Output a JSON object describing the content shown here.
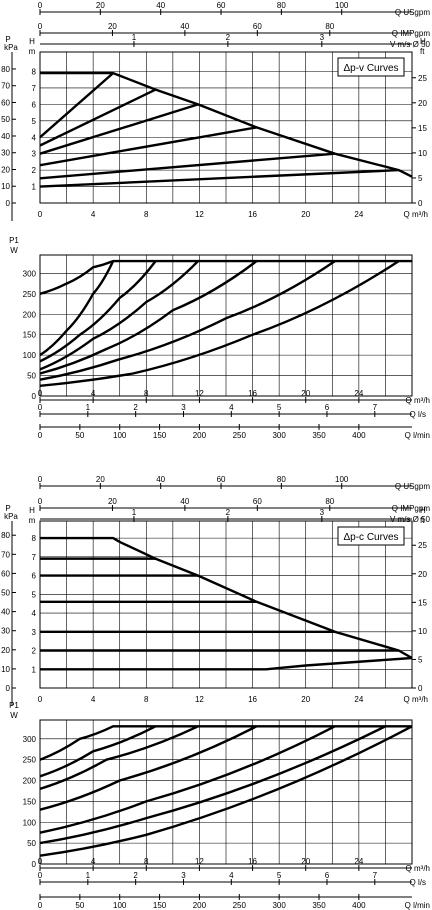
{
  "panels": [
    {
      "id": "dpv",
      "title": "Δp-v Curves",
      "top_axes": {
        "usgpm": {
          "label": "Q USgpm",
          "ticks": [
            "0",
            "20",
            "40",
            "60",
            "80",
            "100"
          ]
        },
        "impgpm": {
          "label": "Q IMPgpm",
          "ticks": [
            "0",
            "20",
            "40",
            "60",
            "80"
          ]
        },
        "vel": {
          "label": "V m/s Ø 50",
          "ticks": [
            "1",
            "2",
            "3"
          ]
        }
      },
      "head": {
        "left_units": [
          "P",
          "kPa"
        ],
        "mid_units": [
          "H",
          "m"
        ],
        "right_units": [
          "H",
          "ft"
        ],
        "kpa_ticks": [
          "0",
          "10",
          "20",
          "30",
          "40",
          "50",
          "60",
          "70",
          "80"
        ],
        "m_ticks": [
          "1",
          "2",
          "3",
          "4",
          "5",
          "6",
          "7",
          "8"
        ],
        "ft_ticks": [
          "0",
          "5",
          "10",
          "15",
          "20",
          "25"
        ],
        "x_ticks": [
          "0",
          "4",
          "8",
          "12",
          "16",
          "20",
          "24"
        ],
        "x_label": "Q m³/h"
      },
      "power": {
        "units": [
          "P1",
          "W"
        ],
        "y_ticks": [
          "0",
          "50",
          "100",
          "150",
          "200",
          "250",
          "300"
        ],
        "x_ticks": [
          "0",
          "4",
          "8",
          "12",
          "16",
          "20",
          "24"
        ],
        "x_label": "Q m³/h",
        "ls": {
          "label": "Q l/s",
          "ticks": [
            "0",
            "1",
            "2",
            "3",
            "4",
            "5",
            "6",
            "7"
          ]
        },
        "lmin": {
          "label": "Q l/min",
          "ticks": [
            "0",
            "50",
            "100",
            "150",
            "200",
            "250",
            "300",
            "350",
            "400"
          ]
        }
      }
    },
    {
      "id": "dpc",
      "title": "Δp-c Curves",
      "top_axes": {
        "usgpm": {
          "label": "Q USgpm",
          "ticks": [
            "0",
            "20",
            "40",
            "60",
            "80",
            "100"
          ]
        },
        "impgpm": {
          "label": "Q IMPgpm",
          "ticks": [
            "0",
            "20",
            "40",
            "60",
            "80"
          ]
        },
        "vel": {
          "label": "V m/s Ø 50",
          "ticks": [
            "1",
            "2",
            "3"
          ]
        }
      },
      "head": {
        "left_units": [
          "P",
          "kPa"
        ],
        "mid_units": [
          "H",
          "m"
        ],
        "right_units": [
          "H",
          "ft"
        ],
        "kpa_ticks": [
          "0",
          "10",
          "20",
          "30",
          "40",
          "50",
          "60",
          "70",
          "80"
        ],
        "m_ticks": [
          "1",
          "2",
          "3",
          "4",
          "5",
          "6",
          "7",
          "8"
        ],
        "ft_ticks": [
          "0",
          "5",
          "10",
          "15",
          "20",
          "25"
        ],
        "x_ticks": [
          "0",
          "4",
          "8",
          "12",
          "16",
          "20",
          "24"
        ],
        "x_label": "Q m³/h"
      },
      "power": {
        "units": [
          "P1",
          "W"
        ],
        "y_ticks": [
          "0",
          "50",
          "100",
          "150",
          "200",
          "250",
          "300"
        ],
        "x_ticks": [
          "0",
          "4",
          "8",
          "12",
          "16",
          "20",
          "24"
        ],
        "x_label": "Q m³/h",
        "ls": {
          "label": "Q l/s",
          "ticks": [
            "0",
            "1",
            "2",
            "3",
            "4",
            "5",
            "6",
            "7"
          ]
        },
        "lmin": {
          "label": "Q l/min",
          "ticks": [
            "0",
            "50",
            "100",
            "150",
            "200",
            "250",
            "300",
            "350",
            "400"
          ]
        }
      }
    }
  ],
  "chart_data": [
    {
      "type": "line",
      "panel": "dpv",
      "x_unit": "m³/h",
      "y_unit": "m",
      "xlim": [
        0,
        28
      ],
      "ylim": [
        0,
        8.7
      ],
      "grid": true,
      "series": [
        {
          "values": [
            [
              0,
              4.0
            ],
            [
              5.5,
              7.9
            ]
          ]
        },
        {
          "values": [
            [
              0,
              3.5
            ],
            [
              8.7,
              6.9
            ]
          ]
        },
        {
          "values": [
            [
              0,
              3.0
            ],
            [
              11.9,
              6.0
            ]
          ]
        },
        {
          "values": [
            [
              0,
              2.3
            ],
            [
              16.3,
              4.6
            ]
          ]
        },
        {
          "values": [
            [
              0,
              1.5
            ],
            [
              22.2,
              3.0
            ]
          ]
        },
        {
          "values": [
            [
              0,
              1.0
            ],
            [
              27.0,
              2.0
            ]
          ]
        },
        {
          "values": [
            [
              0,
              7.9
            ],
            [
              5.5,
              7.9
            ],
            [
              8.7,
              6.9
            ],
            [
              11.9,
              6.0
            ],
            [
              16.3,
              4.6
            ],
            [
              22.2,
              3.0
            ],
            [
              27.0,
              2.0
            ],
            [
              28.0,
              1.6
            ]
          ]
        }
      ]
    },
    {
      "type": "line",
      "panel": "dpv",
      "x_unit": "m³/h",
      "y_unit": "W",
      "xlim": [
        0,
        28
      ],
      "ylim": [
        0,
        345
      ],
      "grid": true,
      "series": [
        {
          "values": [
            [
              0,
              250
            ],
            [
              2,
              275
            ],
            [
              4,
              315
            ],
            [
              5.5,
              330
            ],
            [
              28,
              330
            ]
          ]
        },
        {
          "values": [
            [
              0,
              100
            ],
            [
              2,
              160
            ],
            [
              4,
              250
            ],
            [
              5.5,
              330
            ]
          ]
        },
        {
          "values": [
            [
              0,
              85
            ],
            [
              3,
              150
            ],
            [
              6,
              240
            ],
            [
              8.7,
              330
            ]
          ]
        },
        {
          "values": [
            [
              0,
              65
            ],
            [
              4,
              140
            ],
            [
              8,
              230
            ],
            [
              11.9,
              330
            ]
          ]
        },
        {
          "values": [
            [
              0,
              55
            ],
            [
              5,
              115
            ],
            [
              10,
              210
            ],
            [
              16.3,
              330
            ]
          ]
        },
        {
          "values": [
            [
              0,
              40
            ],
            [
              6,
              90
            ],
            [
              14,
              190
            ],
            [
              22.2,
              330
            ]
          ]
        },
        {
          "values": [
            [
              0,
              25
            ],
            [
              7,
              55
            ],
            [
              16,
              150
            ],
            [
              27.0,
              330
            ]
          ]
        }
      ]
    },
    {
      "type": "line",
      "panel": "dpc",
      "x_unit": "m³/h",
      "y_unit": "m",
      "xlim": [
        0,
        28
      ],
      "ylim": [
        0,
        8.7
      ],
      "grid": true,
      "series": [
        {
          "values": [
            [
              0,
              8.0
            ],
            [
              5.5,
              8.0
            ],
            [
              6.0,
              7.8
            ]
          ]
        },
        {
          "values": [
            [
              0,
              6.9
            ],
            [
              8.7,
              6.9
            ]
          ]
        },
        {
          "values": [
            [
              0,
              6.0
            ],
            [
              11.9,
              6.0
            ]
          ]
        },
        {
          "values": [
            [
              0,
              4.6
            ],
            [
              16.3,
              4.6
            ]
          ]
        },
        {
          "values": [
            [
              0,
              3.0
            ],
            [
              22.2,
              3.0
            ]
          ]
        },
        {
          "values": [
            [
              0,
              2.0
            ],
            [
              27.0,
              2.0
            ]
          ]
        },
        {
          "values": [
            [
              0,
              1.0
            ],
            [
              17.0,
              1.0
            ],
            [
              20.0,
              1.2
            ],
            [
              28.0,
              1.6
            ]
          ]
        },
        {
          "values": [
            [
              6.0,
              7.8
            ],
            [
              8.7,
              6.9
            ],
            [
              11.9,
              6.0
            ],
            [
              16.3,
              4.6
            ],
            [
              22.2,
              3.0
            ],
            [
              27.0,
              2.0
            ],
            [
              28.0,
              1.6
            ]
          ]
        }
      ]
    },
    {
      "type": "line",
      "panel": "dpc",
      "x_unit": "m³/h",
      "y_unit": "W",
      "xlim": [
        0,
        28
      ],
      "ylim": [
        0,
        345
      ],
      "grid": true,
      "series": [
        {
          "values": [
            [
              0,
              250
            ],
            [
              3,
              300
            ],
            [
              5.5,
              330
            ],
            [
              28,
              330
            ]
          ]
        },
        {
          "values": [
            [
              0,
              210
            ],
            [
              4,
              270
            ],
            [
              8.7,
              330
            ]
          ]
        },
        {
          "values": [
            [
              0,
              180
            ],
            [
              5,
              250
            ],
            [
              11.9,
              330
            ]
          ]
        },
        {
          "values": [
            [
              0,
              130
            ],
            [
              6,
              200
            ],
            [
              16.3,
              330
            ]
          ]
        },
        {
          "values": [
            [
              0,
              75
            ],
            [
              8,
              150
            ],
            [
              22.2,
              330
            ]
          ]
        },
        {
          "values": [
            [
              0,
              50
            ],
            [
              8,
              110
            ],
            [
              26.0,
              330
            ]
          ]
        },
        {
          "values": [
            [
              0,
              20
            ],
            [
              8,
              70
            ],
            [
              28.0,
              330
            ]
          ]
        }
      ]
    }
  ]
}
